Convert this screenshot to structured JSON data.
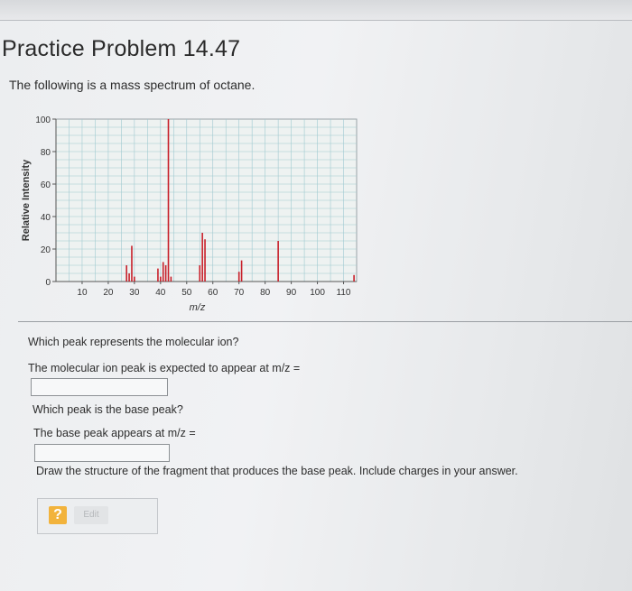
{
  "page": {
    "title": "Practice Problem 14.47",
    "intro": "The following is a mass spectrum of octane."
  },
  "questions": {
    "q1_text": "Which peak represents the molecular ion?",
    "q1_prompt": "The molecular ion peak is expected to appear at m/z =",
    "q1_value": "",
    "q2_text": "Which peak is the base peak?",
    "q2_prompt": "The base peak appears at m/z =",
    "q2_value": "",
    "q3_text": "Draw the structure of the fragment that produces the base peak. Include charges in your answer."
  },
  "tools": {
    "help_label": "?",
    "edit_label": "Edit"
  },
  "chart_data": {
    "type": "bar",
    "xlabel": "m/z",
    "ylabel": "Relative Intensity",
    "xlim": [
      0,
      115
    ],
    "ylim": [
      0,
      100
    ],
    "x_ticks": [
      10,
      20,
      30,
      40,
      50,
      60,
      70,
      80,
      90,
      100,
      110
    ],
    "y_ticks": [
      0,
      20,
      40,
      60,
      80,
      100
    ],
    "grid": true,
    "colors": {
      "bar": "#c8202a",
      "grid": "#9fc9d0"
    },
    "peaks": [
      {
        "x": 27,
        "y": 10
      },
      {
        "x": 28,
        "y": 5
      },
      {
        "x": 29,
        "y": 22
      },
      {
        "x": 30,
        "y": 3
      },
      {
        "x": 39,
        "y": 8
      },
      {
        "x": 40,
        "y": 3
      },
      {
        "x": 41,
        "y": 12
      },
      {
        "x": 42,
        "y": 10
      },
      {
        "x": 43,
        "y": 100
      },
      {
        "x": 44,
        "y": 3
      },
      {
        "x": 55,
        "y": 10
      },
      {
        "x": 56,
        "y": 30
      },
      {
        "x": 57,
        "y": 26
      },
      {
        "x": 70,
        "y": 6
      },
      {
        "x": 71,
        "y": 13
      },
      {
        "x": 85,
        "y": 25
      },
      {
        "x": 114,
        "y": 4
      }
    ]
  }
}
